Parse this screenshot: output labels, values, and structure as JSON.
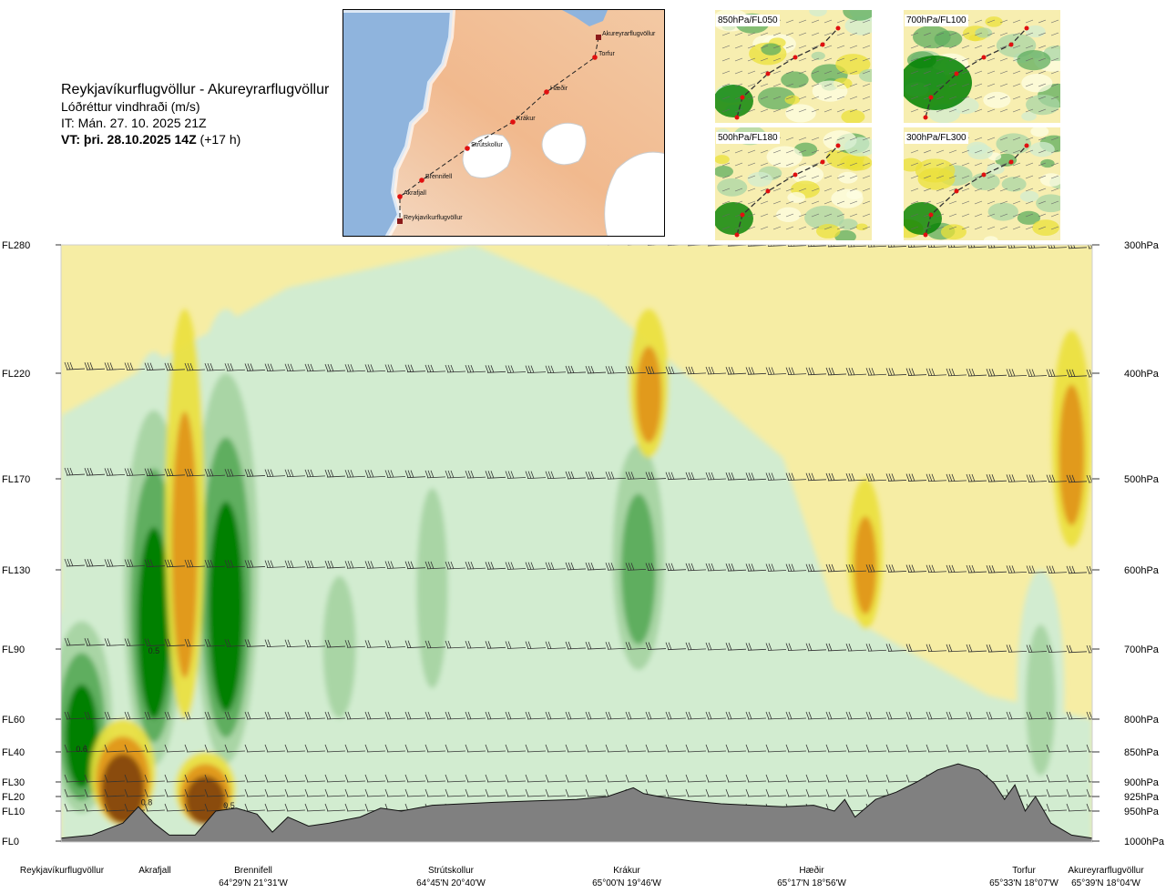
{
  "header": {
    "route": "Reykjavíkurflugvöllur - Akureyrarflugvöllur",
    "parameter": "Lóðréttur vindhraði (m/s)",
    "init_time": "IT: Mán. 27. 10. 2025 21Z",
    "valid_prefix": "VT: þri. 28.10.2025 14Z",
    "valid_offset": " (+17 h)"
  },
  "route_map": {
    "points": [
      {
        "name": "Akureyrarflugvöllur",
        "kind": "airport"
      },
      {
        "name": "Torfur",
        "kind": "waypoint"
      },
      {
        "name": "Hæðir",
        "kind": "waypoint"
      },
      {
        "name": "Krákur",
        "kind": "waypoint"
      },
      {
        "name": "Strútskollur",
        "kind": "waypoint"
      },
      {
        "name": "Brennifell",
        "kind": "waypoint"
      },
      {
        "name": "Akrafjall",
        "kind": "waypoint"
      },
      {
        "name": "Reykjavíkurflugvöllur",
        "kind": "airport"
      }
    ]
  },
  "thumbnails": [
    {
      "label": "850hPa/FL050"
    },
    {
      "label": "700hPa/FL100"
    },
    {
      "label": "500hPa/FL180"
    },
    {
      "label": "300hPa/FL300"
    }
  ],
  "colors": {
    "updraft_strong": "#008000",
    "updraft_mid": "#5fae5f",
    "updraft_weak": "#a9d5a5",
    "updraft_faint": "#d2ecd0",
    "near_zero": "#fdfde3",
    "downdraft_weak": "#f6eda4",
    "downdraft_mid": "#ebe03a",
    "downdraft_strong": "#e19a1b",
    "downdraft_max": "#8a4b10",
    "terrain": "#808080"
  },
  "chart_data": {
    "type": "heatmap",
    "title": "",
    "y_left_ticks": [
      "FL280",
      "FL220",
      "FL170",
      "FL130",
      "FL90",
      "FL60",
      "FL40",
      "FL30",
      "FL20",
      "FL10",
      "FL0"
    ],
    "y_left_values_fl": [
      280,
      220,
      170,
      130,
      90,
      60,
      40,
      30,
      20,
      10,
      0
    ],
    "y_right_ticks": [
      "300hPa",
      "400hPa",
      "500hPa",
      "600hPa",
      "700hPa",
      "800hPa",
      "850hPa",
      "900hPa",
      "925hPa",
      "950hPa",
      "1000hPa"
    ],
    "y_right_values_hpa": [
      300,
      400,
      500,
      600,
      700,
      800,
      850,
      900,
      925,
      950,
      1000
    ],
    "x_stations": [
      {
        "name": "Reykjavíkurflugvöllur",
        "coord": "",
        "dist": 0
      },
      {
        "name": "Akrafjall",
        "coord": "",
        "dist": 0.08
      },
      {
        "name": "Brennifell",
        "coord": "64°29'N 21°31'W",
        "dist": 0.18
      },
      {
        "name": "Strútskollur",
        "coord": "64°45'N 20°40'W",
        "dist": 0.38
      },
      {
        "name": "Krákur",
        "coord": "65°00'N 19°46'W",
        "dist": 0.58
      },
      {
        "name": "Hæðir",
        "coord": "65°17'N 18°56'W",
        "dist": 0.78
      },
      {
        "name": "Torfur",
        "coord": "65°33'N 18°07'W",
        "dist": 0.95
      },
      {
        "name": "Akureyrarflugvöllur",
        "coord": "65°39'N 18°04'W",
        "dist": 1.0
      }
    ],
    "contour_labels": [
      {
        "text": "0.5",
        "dist": 0.09,
        "fl": 88
      },
      {
        "text": "0.6",
        "dist": 0.02,
        "fl": 40
      },
      {
        "text": "0.8",
        "dist": 0.083,
        "fl": 14
      },
      {
        "text": "0.5",
        "dist": 0.163,
        "fl": 12
      }
    ],
    "updraft_cores": [
      {
        "dist": 0.02,
        "fl_min": 5,
        "fl_max": 120,
        "strength": 0.9
      },
      {
        "dist": 0.09,
        "fl_min": 25,
        "fl_max": 230,
        "strength": 0.9
      },
      {
        "dist": 0.16,
        "fl_min": 25,
        "fl_max": 250,
        "strength": 1.0
      },
      {
        "dist": 0.27,
        "fl_min": 40,
        "fl_max": 150,
        "strength": 0.5
      },
      {
        "dist": 0.36,
        "fl_min": 50,
        "fl_max": 200,
        "strength": 0.45
      },
      {
        "dist": 0.56,
        "fl_min": 70,
        "fl_max": 210,
        "strength": 0.8
      },
      {
        "dist": 0.95,
        "fl_min": 10,
        "fl_max": 130,
        "strength": 0.4
      }
    ],
    "downdraft_cores": [
      {
        "dist": 0.06,
        "fl_min": 5,
        "fl_max": 60,
        "strength": 1.0
      },
      {
        "dist": 0.14,
        "fl_min": 5,
        "fl_max": 40,
        "strength": 0.9
      },
      {
        "dist": 0.12,
        "fl_min": 60,
        "fl_max": 250,
        "strength": 0.45
      },
      {
        "dist": 0.57,
        "fl_min": 180,
        "fl_max": 250,
        "strength": 0.45
      },
      {
        "dist": 0.78,
        "fl_min": 100,
        "fl_max": 170,
        "strength": 0.35
      },
      {
        "dist": 0.98,
        "fl_min": 140,
        "fl_max": 240,
        "strength": 0.45
      }
    ],
    "terrain_profile_fl": [
      [
        0.0,
        1
      ],
      [
        0.03,
        2
      ],
      [
        0.06,
        6
      ],
      [
        0.075,
        13
      ],
      [
        0.09,
        6
      ],
      [
        0.105,
        2
      ],
      [
        0.13,
        2
      ],
      [
        0.15,
        10
      ],
      [
        0.17,
        12
      ],
      [
        0.19,
        9
      ],
      [
        0.205,
        3
      ],
      [
        0.22,
        8
      ],
      [
        0.24,
        5
      ],
      [
        0.26,
        6
      ],
      [
        0.29,
        8
      ],
      [
        0.31,
        12
      ],
      [
        0.33,
        10
      ],
      [
        0.36,
        14
      ],
      [
        0.39,
        15
      ],
      [
        0.42,
        16
      ],
      [
        0.46,
        17
      ],
      [
        0.5,
        18
      ],
      [
        0.53,
        20
      ],
      [
        0.555,
        26
      ],
      [
        0.565,
        22
      ],
      [
        0.58,
        20
      ],
      [
        0.61,
        17
      ],
      [
        0.64,
        15
      ],
      [
        0.67,
        14
      ],
      [
        0.7,
        13
      ],
      [
        0.73,
        14
      ],
      [
        0.75,
        10
      ],
      [
        0.76,
        18
      ],
      [
        0.77,
        8
      ],
      [
        0.79,
        18
      ],
      [
        0.81,
        23
      ],
      [
        0.83,
        30
      ],
      [
        0.85,
        34
      ],
      [
        0.87,
        36
      ],
      [
        0.89,
        34
      ],
      [
        0.905,
        29
      ],
      [
        0.915,
        18
      ],
      [
        0.925,
        28
      ],
      [
        0.935,
        10
      ],
      [
        0.945,
        20
      ],
      [
        0.96,
        6
      ],
      [
        0.98,
        2
      ],
      [
        1.0,
        1
      ]
    ],
    "grid": false,
    "wind_barbs": true
  }
}
